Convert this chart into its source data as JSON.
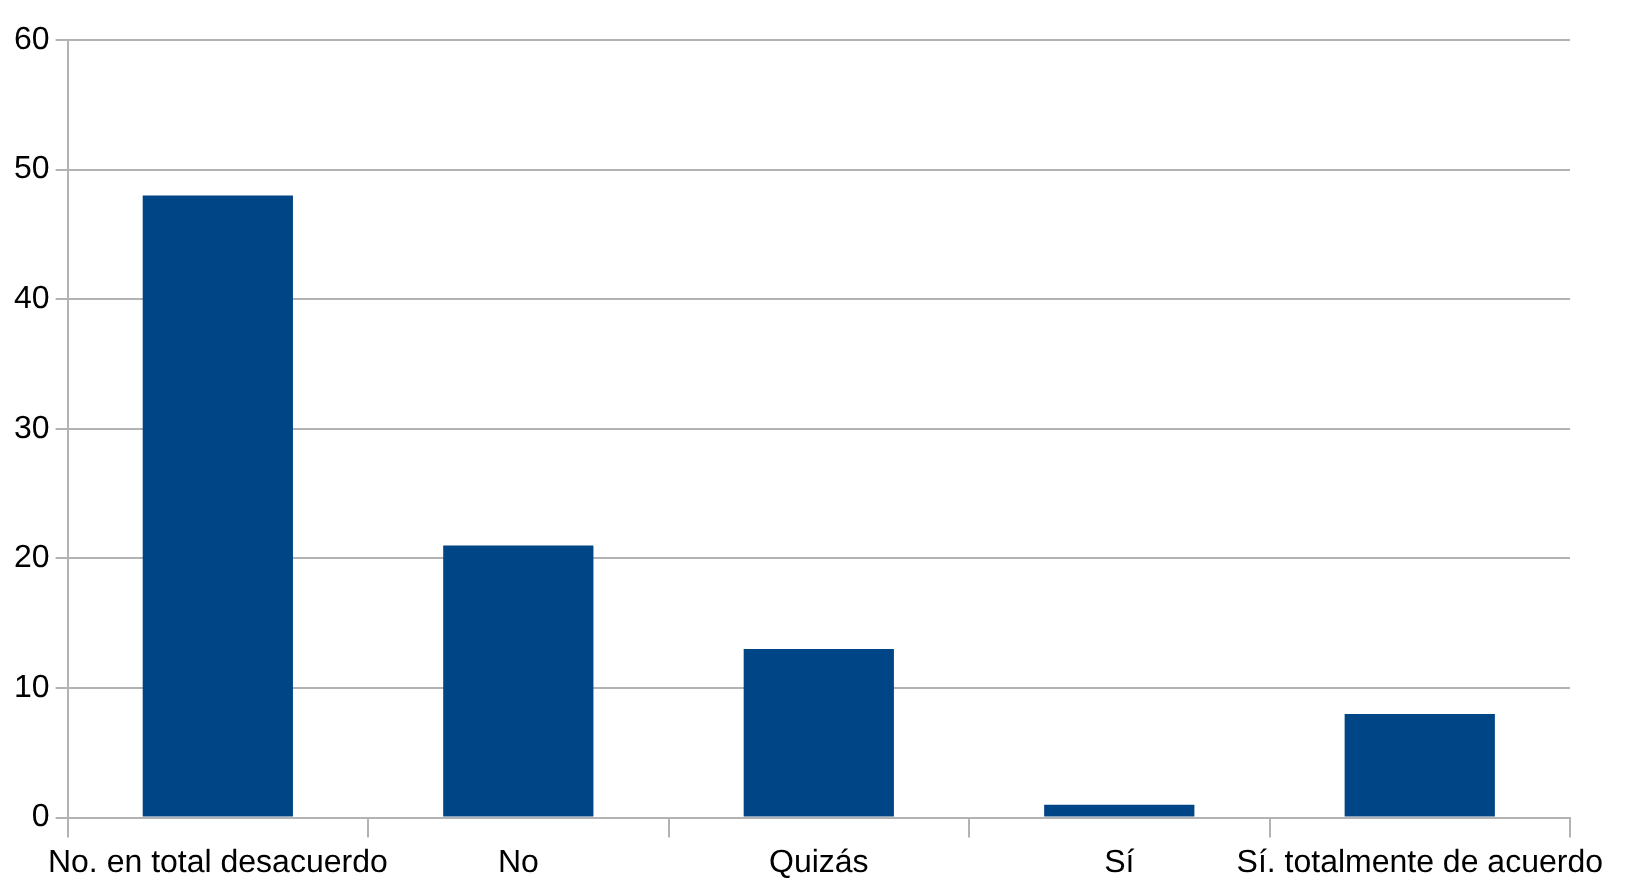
{
  "chart_data": {
    "type": "bar",
    "categories": [
      "No. en total desacuerdo",
      "No",
      "Quizás",
      "Sí",
      "Sí. totalmente de acuerdo"
    ],
    "values": [
      48,
      21,
      13,
      1,
      8
    ],
    "color": "#004586",
    "ylim": [
      0,
      60
    ],
    "yticks": [
      0,
      10,
      20,
      30,
      40,
      50,
      60
    ],
    "grid": "y",
    "legend": false
  }
}
